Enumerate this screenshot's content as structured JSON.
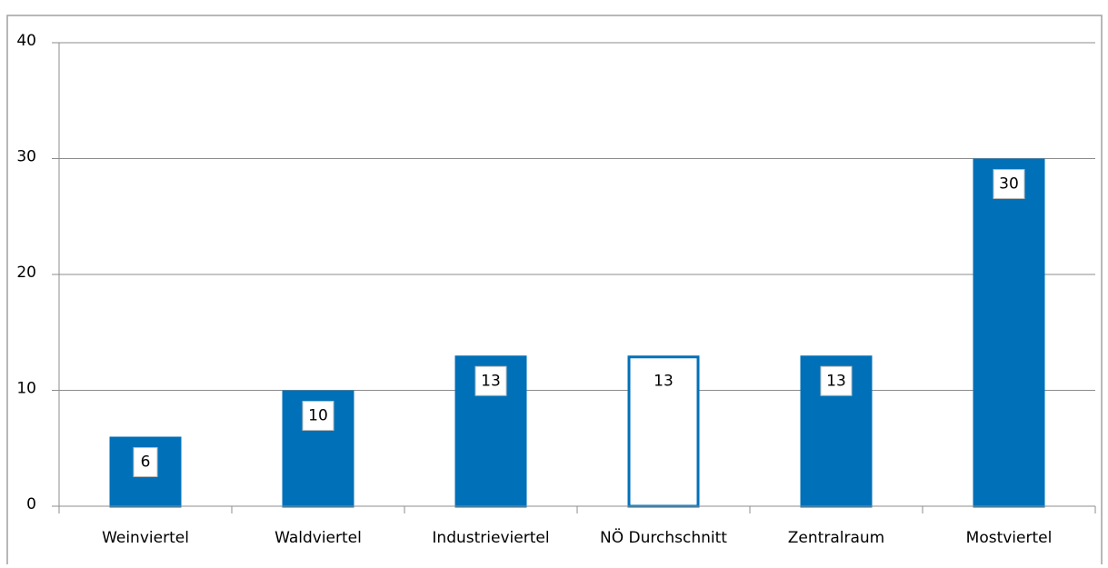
{
  "chart_data": {
    "type": "bar",
    "categories": [
      "Weinviertel",
      "Waldviertel",
      "Industrieviertel",
      "NÖ Durchschnitt",
      "Zentralraum",
      "Mostviertel"
    ],
    "values": [
      6,
      10,
      13,
      13,
      13,
      30
    ],
    "colors": [
      "#0070b8",
      "#0070b8",
      "#0070b8",
      "#ffffff",
      "#0070b8",
      "#0070b8"
    ],
    "edgecolor": "#0070b8",
    "ylim": [
      0,
      40
    ],
    "yticks": [
      0,
      10,
      20,
      30,
      40
    ],
    "grid": true
  }
}
